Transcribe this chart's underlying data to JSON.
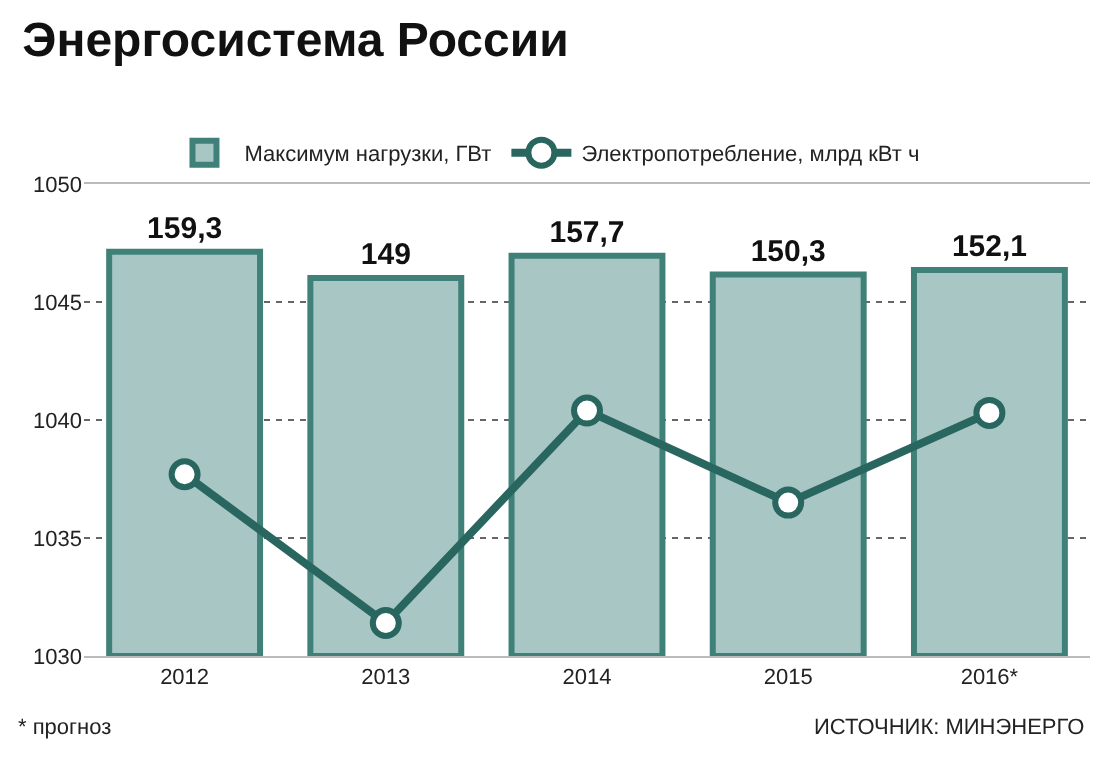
{
  "chart_data": {
    "type": "bar",
    "title": "Энергосистема России",
    "categories": [
      "2012",
      "2013",
      "2014",
      "2015",
      "2016*"
    ],
    "series": [
      {
        "name": "Максимум нагрузки, ГВт",
        "axis": "y2",
        "color": "#a8c7c4",
        "values": [
          159.3,
          149,
          157.7,
          150.3,
          152.1
        ],
        "value_labels": [
          "159,3",
          "149",
          "157,7",
          "150,3",
          "152,1"
        ]
      },
      {
        "name": "Электропотребление, млрд кВт ч",
        "type": "line",
        "axis": "y",
        "color": "#2a6660",
        "values": [
          1037.7,
          1031.4,
          1040.4,
          1036.5,
          1040.3
        ]
      }
    ],
    "ylim": [
      1030,
      1050
    ],
    "yticks": [
      1030,
      1035,
      1040,
      1045,
      1050
    ],
    "y2lim": [
      0,
      186
    ],
    "grid": "y",
    "legend": "top",
    "marker": "circle",
    "line_style": "solid",
    "annotations": [
      "* прогноз",
      "ИСТОЧНИК: МИНЭНЕРГО"
    ]
  }
}
